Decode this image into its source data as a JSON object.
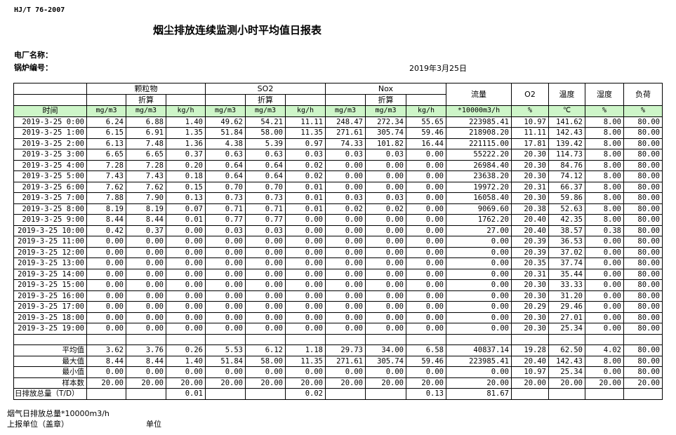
{
  "standard": "HJ/T  76-2007",
  "title": "烟尘排放连续监测小时平均值日报表",
  "plant_label": "电厂名称：",
  "boiler_label": "锅炉编号：",
  "date": "2019年3月25日",
  "header": {
    "particulate": "颗粒物",
    "so2": "SO2",
    "nox": "Nox",
    "converted": "折算",
    "flow": "流量",
    "o2": "O2",
    "temp": "温度",
    "humidity": "湿度",
    "load": "负荷",
    "time": "时间",
    "units": [
      "mg/m3",
      "mg/m3",
      "kg/h",
      "mg/m3",
      "mg/m3",
      "kg/h",
      "mg/m3",
      "mg/m3",
      "kg/h",
      "*10000m3/h",
      "%",
      "℃",
      "%",
      "%"
    ]
  },
  "colors": {
    "unit_row_bg": "#cdf5c8"
  },
  "rows": [
    [
      "2019-3-25 0:00",
      "6.24",
      "6.88",
      "1.40",
      "49.62",
      "54.21",
      "11.11",
      "248.47",
      "272.34",
      "55.65",
      "223985.41",
      "10.97",
      "141.62",
      "8.00",
      "80.00"
    ],
    [
      "2019-3-25 1:00",
      "6.15",
      "6.91",
      "1.35",
      "51.84",
      "58.00",
      "11.35",
      "271.61",
      "305.74",
      "59.46",
      "218908.20",
      "11.11",
      "142.43",
      "8.00",
      "80.00"
    ],
    [
      "2019-3-25 2:00",
      "6.13",
      "7.48",
      "1.36",
      "4.38",
      "5.39",
      "0.97",
      "74.33",
      "101.82",
      "16.44",
      "221115.00",
      "17.81",
      "139.42",
      "8.00",
      "80.00"
    ],
    [
      "2019-3-25 3:00",
      "6.65",
      "6.65",
      "0.37",
      "0.63",
      "0.63",
      "0.03",
      "0.03",
      "0.03",
      "0.00",
      "55222.20",
      "20.30",
      "114.73",
      "8.00",
      "80.00"
    ],
    [
      "2019-3-25 4:00",
      "7.28",
      "7.28",
      "0.20",
      "0.64",
      "0.64",
      "0.02",
      "0.00",
      "0.00",
      "0.00",
      "26984.40",
      "20.30",
      "84.76",
      "8.00",
      "80.00"
    ],
    [
      "2019-3-25 5:00",
      "7.43",
      "7.43",
      "0.18",
      "0.64",
      "0.64",
      "0.02",
      "0.00",
      "0.00",
      "0.00",
      "23638.20",
      "20.30",
      "74.12",
      "8.00",
      "80.00"
    ],
    [
      "2019-3-25 6:00",
      "7.62",
      "7.62",
      "0.15",
      "0.70",
      "0.70",
      "0.01",
      "0.00",
      "0.00",
      "0.00",
      "19972.20",
      "20.31",
      "66.37",
      "8.00",
      "80.00"
    ],
    [
      "2019-3-25 7:00",
      "7.88",
      "7.90",
      "0.13",
      "0.73",
      "0.73",
      "0.01",
      "0.03",
      "0.03",
      "0.00",
      "16058.40",
      "20.30",
      "59.86",
      "8.00",
      "80.00"
    ],
    [
      "2019-3-25 8:00",
      "8.19",
      "8.19",
      "0.07",
      "0.71",
      "0.71",
      "0.01",
      "0.02",
      "0.02",
      "0.00",
      "9069.60",
      "20.38",
      "52.63",
      "8.00",
      "80.00"
    ],
    [
      "2019-3-25 9:00",
      "8.44",
      "8.44",
      "0.01",
      "0.77",
      "0.77",
      "0.00",
      "0.00",
      "0.00",
      "0.00",
      "1762.20",
      "20.40",
      "42.35",
      "8.00",
      "80.00"
    ],
    [
      "2019-3-25 10:00",
      "0.42",
      "0.37",
      "0.00",
      "0.03",
      "0.03",
      "0.00",
      "0.00",
      "0.00",
      "0.00",
      "27.00",
      "20.40",
      "38.57",
      "0.38",
      "80.00"
    ],
    [
      "2019-3-25 11:00",
      "0.00",
      "0.00",
      "0.00",
      "0.00",
      "0.00",
      "0.00",
      "0.00",
      "0.00",
      "0.00",
      "0.00",
      "20.39",
      "36.53",
      "0.00",
      "80.00"
    ],
    [
      "2019-3-25 12:00",
      "0.00",
      "0.00",
      "0.00",
      "0.00",
      "0.00",
      "0.00",
      "0.00",
      "0.00",
      "0.00",
      "0.00",
      "20.39",
      "37.02",
      "0.00",
      "80.00"
    ],
    [
      "2019-3-25 13:00",
      "0.00",
      "0.00",
      "0.00",
      "0.00",
      "0.00",
      "0.00",
      "0.00",
      "0.00",
      "0.00",
      "0.00",
      "20.35",
      "37.74",
      "0.00",
      "80.00"
    ],
    [
      "2019-3-25 14:00",
      "0.00",
      "0.00",
      "0.00",
      "0.00",
      "0.00",
      "0.00",
      "0.00",
      "0.00",
      "0.00",
      "0.00",
      "20.31",
      "35.44",
      "0.00",
      "80.00"
    ],
    [
      "2019-3-25 15:00",
      "0.00",
      "0.00",
      "0.00",
      "0.00",
      "0.00",
      "0.00",
      "0.00",
      "0.00",
      "0.00",
      "0.00",
      "20.30",
      "33.33",
      "0.00",
      "80.00"
    ],
    [
      "2019-3-25 16:00",
      "0.00",
      "0.00",
      "0.00",
      "0.00",
      "0.00",
      "0.00",
      "0.00",
      "0.00",
      "0.00",
      "0.00",
      "20.30",
      "31.20",
      "0.00",
      "80.00"
    ],
    [
      "2019-3-25 17:00",
      "0.00",
      "0.00",
      "0.00",
      "0.00",
      "0.00",
      "0.00",
      "0.00",
      "0.00",
      "0.00",
      "0.00",
      "20.29",
      "29.46",
      "0.00",
      "80.00"
    ],
    [
      "2019-3-25 18:00",
      "0.00",
      "0.00",
      "0.00",
      "0.00",
      "0.00",
      "0.00",
      "0.00",
      "0.00",
      "0.00",
      "0.00",
      "20.30",
      "27.01",
      "0.00",
      "80.00"
    ],
    [
      "2019-3-25 19:00",
      "0.00",
      "0.00",
      "0.00",
      "0.00",
      "0.00",
      "0.00",
      "0.00",
      "0.00",
      "0.00",
      "0.00",
      "20.30",
      "25.34",
      "0.00",
      "80.00"
    ]
  ],
  "summary": [
    [
      "平均值",
      "3.62",
      "3.76",
      "0.26",
      "5.53",
      "6.12",
      "1.18",
      "29.73",
      "34.00",
      "6.58",
      "40837.14",
      "19.28",
      "62.50",
      "4.02",
      "80.00"
    ],
    [
      "最大值",
      "8.44",
      "8.44",
      "1.40",
      "51.84",
      "58.00",
      "11.35",
      "271.61",
      "305.74",
      "59.46",
      "223985.41",
      "20.40",
      "142.43",
      "8.00",
      "80.00"
    ],
    [
      "最小值",
      "0.00",
      "0.00",
      "0.00",
      "0.00",
      "0.00",
      "0.00",
      "0.00",
      "0.00",
      "0.00",
      "0.00",
      "10.97",
      "25.34",
      "0.00",
      "80.00"
    ],
    [
      "样本数",
      "20.00",
      "20.00",
      "20.00",
      "20.00",
      "20.00",
      "20.00",
      "20.00",
      "20.00",
      "20.00",
      "20.00",
      "20.00",
      "20.00",
      "20.00",
      "20.00"
    ],
    [
      "日排放总量（T/D）",
      "",
      "",
      "0.01",
      "",
      "",
      "0.02",
      "",
      "",
      "0.13",
      "81.67",
      "",
      "",
      "",
      ""
    ]
  ],
  "footer": {
    "flue_total": "烟气日排放总量*10000m3/h",
    "reporter": "上报单位（盖章）",
    "unit": "单位"
  }
}
